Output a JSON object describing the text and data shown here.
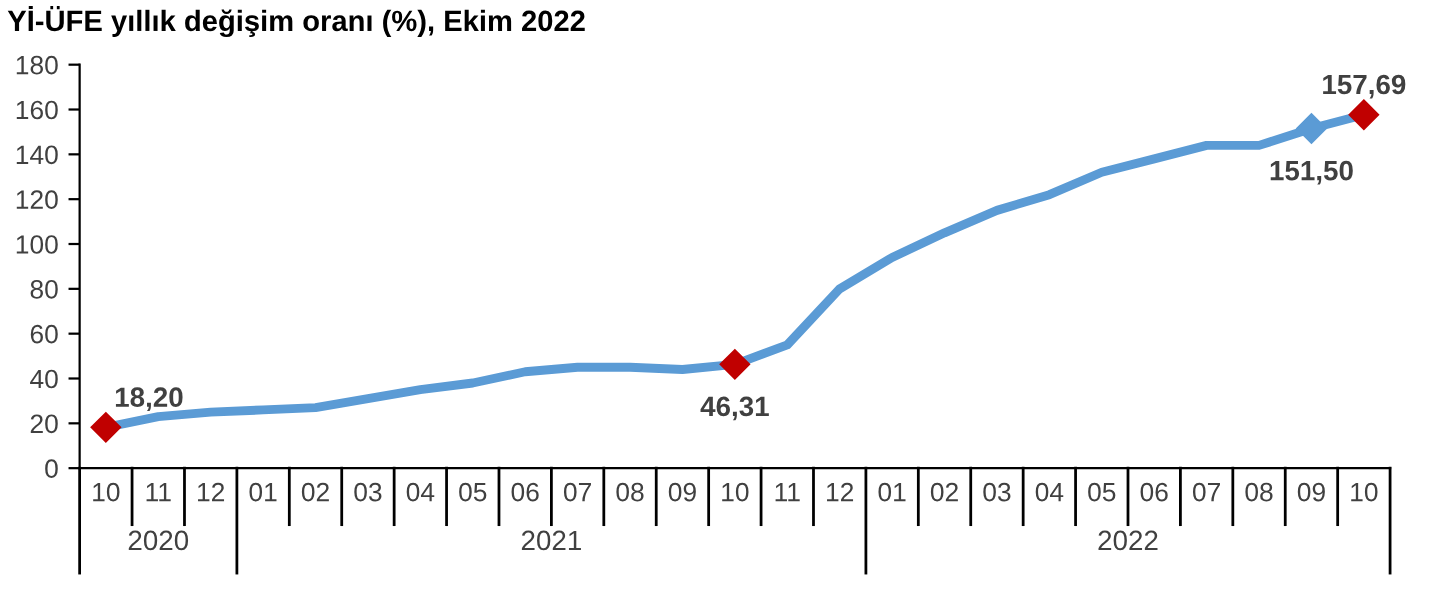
{
  "chart_data": {
    "type": "line",
    "title": "Yİ-ÜFE yıllık değişim oranı (%), Ekim 2022",
    "categories": [
      "10",
      "11",
      "12",
      "01",
      "02",
      "03",
      "04",
      "05",
      "06",
      "07",
      "08",
      "09",
      "10",
      "11",
      "12",
      "01",
      "02",
      "03",
      "04",
      "05",
      "06",
      "07",
      "08",
      "09",
      "10"
    ],
    "annotations": [
      "2020",
      "2021",
      "2022"
    ],
    "series": [
      {
        "color": "#5b9bd5",
        "values": [
          18.2,
          23,
          25,
          26,
          27,
          31,
          35,
          38,
          43,
          45,
          45,
          44,
          46.31,
          55,
          80,
          94,
          105,
          115,
          122,
          132,
          138,
          144,
          144,
          151.5,
          157.69
        ],
        "value_labels": [
          "18,20",
          null,
          null,
          null,
          null,
          null,
          null,
          null,
          null,
          null,
          null,
          null,
          "46,31",
          null,
          null,
          null,
          null,
          null,
          null,
          null,
          null,
          null,
          null,
          "151,50",
          "157,69"
        ],
        "colors": [
          "#c00000",
          null,
          null,
          null,
          null,
          null,
          null,
          null,
          null,
          null,
          null,
          null,
          "#c00000",
          null,
          null,
          null,
          null,
          null,
          null,
          null,
          null,
          null,
          null,
          "#5b9bd5",
          "#c00000"
        ]
      }
    ],
    "ylim": [
      0,
      180
    ],
    "yticks": [
      0,
      20,
      40,
      60,
      80,
      100,
      120,
      140,
      160,
      180
    ],
    "grid": false,
    "legend": false
  }
}
